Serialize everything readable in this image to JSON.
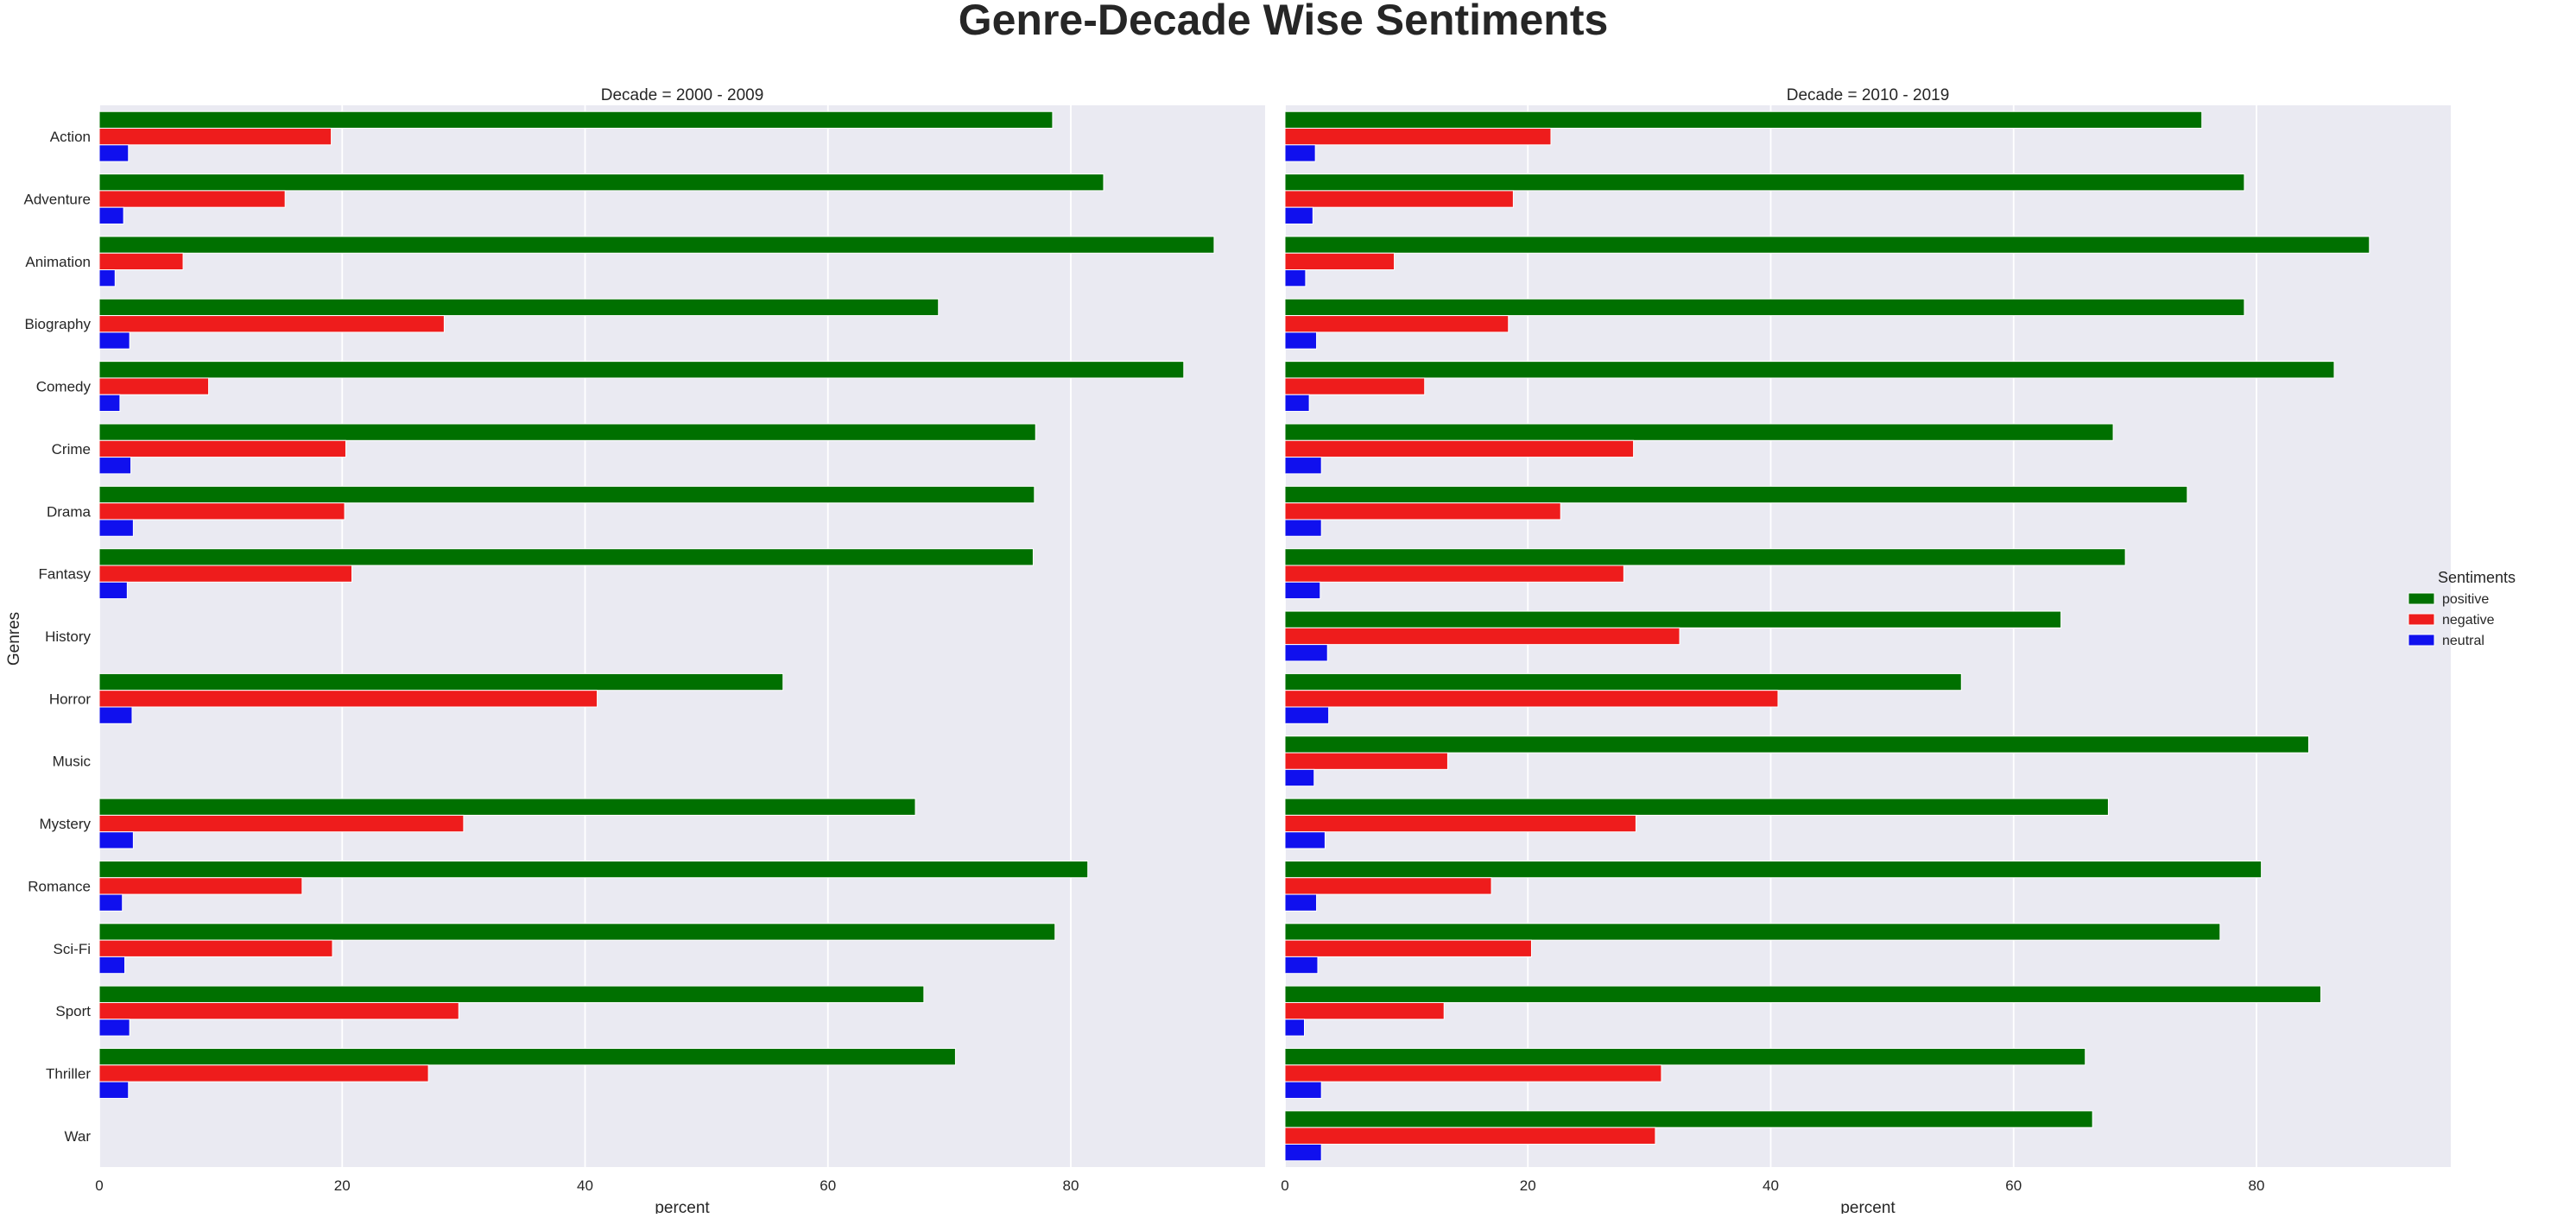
{
  "title": "Genre-Decade Wise Sentiments",
  "legend_title": "Sentiments",
  "y_axis_label": "Genres",
  "colors": {
    "positive": "#007000",
    "negative": "#ee1c1c",
    "neutral": "#1010ee",
    "panel_bg": "#eaeaf2",
    "grid": "#ffffff"
  },
  "chart_data": [
    {
      "type": "bar",
      "orientation": "horizontal",
      "title": "Decade = 2000 - 2009",
      "xlabel": "percent",
      "ylabel": "Genres",
      "xlim": [
        0,
        96
      ],
      "xticks": [
        0,
        20,
        40,
        60,
        80
      ],
      "grid": true,
      "legend_position": "right",
      "categories": [
        "Action",
        "Adventure",
        "Animation",
        "Biography",
        "Comedy",
        "Crime",
        "Drama",
        "Fantasy",
        "History",
        "Horror",
        "Music",
        "Mystery",
        "Romance",
        "Sci-Fi",
        "Sport",
        "Thriller",
        "War"
      ],
      "series": [
        {
          "name": "positive",
          "values": [
            78.5,
            82.7,
            91.8,
            69.1,
            89.3,
            77.1,
            77.0,
            76.9,
            null,
            56.3,
            null,
            67.2,
            81.4,
            78.7,
            67.9,
            70.5,
            null
          ]
        },
        {
          "name": "negative",
          "values": [
            19.1,
            15.3,
            6.9,
            28.4,
            9.0,
            20.3,
            20.2,
            20.8,
            null,
            41.0,
            null,
            30.0,
            16.7,
            19.2,
            29.6,
            27.1,
            null
          ]
        },
        {
          "name": "neutral",
          "values": [
            2.4,
            2.0,
            1.3,
            2.5,
            1.7,
            2.6,
            2.8,
            2.3,
            null,
            2.7,
            null,
            2.8,
            1.9,
            2.1,
            2.5,
            2.4,
            null
          ]
        }
      ]
    },
    {
      "type": "bar",
      "orientation": "horizontal",
      "title": "Decade = 2010 - 2019",
      "xlabel": "percent",
      "ylabel": "",
      "xlim": [
        0,
        96
      ],
      "xticks": [
        0,
        20,
        40,
        60,
        80
      ],
      "grid": true,
      "legend_position": "right",
      "categories": [
        "Action",
        "Adventure",
        "Animation",
        "Biography",
        "Comedy",
        "Crime",
        "Drama",
        "Fantasy",
        "History",
        "Horror",
        "Music",
        "Mystery",
        "Romance",
        "Sci-Fi",
        "Sport",
        "Thriller",
        "War"
      ],
      "series": [
        {
          "name": "positive",
          "values": [
            75.5,
            79.0,
            89.3,
            79.0,
            86.4,
            68.2,
            74.3,
            69.2,
            63.9,
            55.7,
            84.3,
            67.8,
            80.4,
            77.0,
            85.3,
            65.9,
            66.5
          ]
        },
        {
          "name": "negative",
          "values": [
            21.9,
            18.8,
            9.0,
            18.4,
            11.5,
            28.7,
            22.7,
            27.9,
            32.5,
            40.6,
            13.4,
            28.9,
            17.0,
            20.3,
            13.1,
            31.0,
            30.5
          ]
        },
        {
          "name": "neutral",
          "values": [
            2.5,
            2.3,
            1.7,
            2.6,
            2.0,
            3.0,
            3.0,
            2.9,
            3.5,
            3.6,
            2.4,
            3.3,
            2.6,
            2.7,
            1.6,
            3.0,
            3.0
          ]
        }
      ]
    }
  ]
}
